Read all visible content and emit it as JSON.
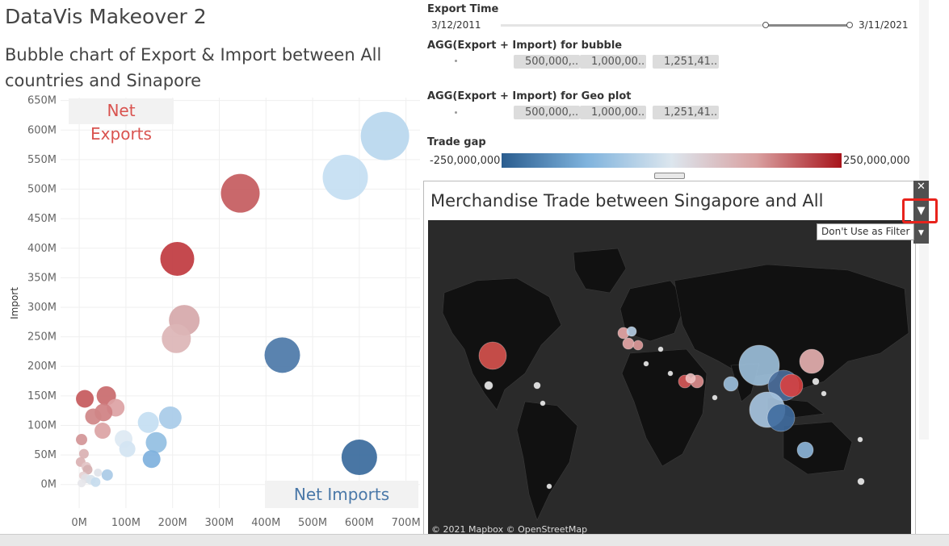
{
  "title": "DataVis Makeover 2",
  "subtitle": "Bubble chart of Export & Import between All countries and Sinapore",
  "filters": {
    "export_time": {
      "label": "Export Time",
      "start": "3/12/2011",
      "end": "3/11/2021"
    },
    "agg_bubble": {
      "label": "AGG(Export + Import) for bubble",
      "pills": [
        "500,000,..",
        "1,000,00..",
        "1,251,41.."
      ]
    },
    "agg_geo": {
      "label": "AGG(Export + Import) for Geo plot",
      "pills": [
        "500,000,..",
        "1,000,00..",
        "1,251,41.."
      ]
    },
    "trade_gap": {
      "label": "Trade gap",
      "min_label": "-250,000,000",
      "max_label": "250,000,000",
      "colors": [
        "#2a5d8f",
        "#7fb3dd",
        "#dce6ee",
        "#d9a0a0",
        "#a8141b"
      ]
    }
  },
  "map": {
    "title": "Merchandise Trade between Singapore and All",
    "credit": "© 2021 Mapbox © OpenStreetMap"
  },
  "toolbar": {
    "tooltip": "Don't Use as Filter"
  },
  "chart_data": {
    "type": "scatter",
    "xlabel": "",
    "ylabel": "Import",
    "xlim": [
      -40,
      730
    ],
    "ylim": [
      -40,
      655
    ],
    "x_ticks": [
      "0M",
      "100M",
      "200M",
      "300M",
      "400M",
      "500M",
      "600M",
      "700M"
    ],
    "y_ticks": [
      "0M",
      "50M",
      "100M",
      "150M",
      "200M",
      "250M",
      "300M",
      "350M",
      "400M",
      "450M",
      "500M",
      "550M",
      "600M",
      "650M"
    ],
    "annotations": [
      {
        "text": "Net\nExports",
        "color": "#d9534f"
      },
      {
        "text": "Net Imports",
        "color": "#4a78a8"
      }
    ],
    "points": [
      {
        "x": 655,
        "y": 590,
        "size": 30,
        "color": "#b9d7ee"
      },
      {
        "x": 570,
        "y": 520,
        "size": 28,
        "color": "#c4def2"
      },
      {
        "x": 345,
        "y": 493,
        "size": 24,
        "color": "#c45b5e"
      },
      {
        "x": 210,
        "y": 382,
        "size": 21,
        "color": "#c0393f"
      },
      {
        "x": 225,
        "y": 278,
        "size": 19,
        "color": "#d6a8aa"
      },
      {
        "x": 208,
        "y": 247,
        "size": 18,
        "color": "#dcb5b6"
      },
      {
        "x": 435,
        "y": 219,
        "size": 22,
        "color": "#4c78a8"
      },
      {
        "x": 600,
        "y": 46,
        "size": 22,
        "color": "#3a6a9c"
      },
      {
        "x": 58,
        "y": 150,
        "size": 12,
        "color": "#c96a6c"
      },
      {
        "x": 12,
        "y": 145,
        "size": 11,
        "color": "#c6595c"
      },
      {
        "x": 78,
        "y": 130,
        "size": 11,
        "color": "#dca2a4"
      },
      {
        "x": 52,
        "y": 122,
        "size": 11,
        "color": "#cf8082"
      },
      {
        "x": 30,
        "y": 115,
        "size": 10,
        "color": "#cf8587"
      },
      {
        "x": 50,
        "y": 91,
        "size": 10,
        "color": "#dba3a4"
      },
      {
        "x": 195,
        "y": 113,
        "size": 14,
        "color": "#a8cbe8"
      },
      {
        "x": 148,
        "y": 105,
        "size": 13,
        "color": "#c4def2"
      },
      {
        "x": 165,
        "y": 71,
        "size": 13,
        "color": "#92bfe2"
      },
      {
        "x": 95,
        "y": 77,
        "size": 11,
        "color": "#dde9f3"
      },
      {
        "x": 103,
        "y": 60,
        "size": 10,
        "color": "#d3e4f2"
      },
      {
        "x": 155,
        "y": 43,
        "size": 11,
        "color": "#7fb1dd"
      },
      {
        "x": 5,
        "y": 76,
        "size": 7,
        "color": "#d29597"
      },
      {
        "x": 10,
        "y": 52,
        "size": 6,
        "color": "#dab1b2"
      },
      {
        "x": 3,
        "y": 38,
        "size": 6,
        "color": "#dab1b2"
      },
      {
        "x": 15,
        "y": 30,
        "size": 6,
        "color": "#e3c6c7"
      },
      {
        "x": 18,
        "y": 25,
        "size": 6,
        "color": "#d6b0b1"
      },
      {
        "x": 8,
        "y": 15,
        "size": 5,
        "color": "#e6d3d4"
      },
      {
        "x": 14,
        "y": 10,
        "size": 6,
        "color": "#e0dfe5"
      },
      {
        "x": 25,
        "y": 8,
        "size": 6,
        "color": "#d8e3ec"
      },
      {
        "x": 35,
        "y": 4,
        "size": 6,
        "color": "#c7dcee"
      },
      {
        "x": 60,
        "y": 16,
        "size": 7,
        "color": "#a9cae6"
      },
      {
        "x": 40,
        "y": 20,
        "size": 5,
        "color": "#dfe3e9"
      },
      {
        "x": 5,
        "y": 2,
        "size": 5,
        "color": "#e6e6ea"
      }
    ]
  }
}
